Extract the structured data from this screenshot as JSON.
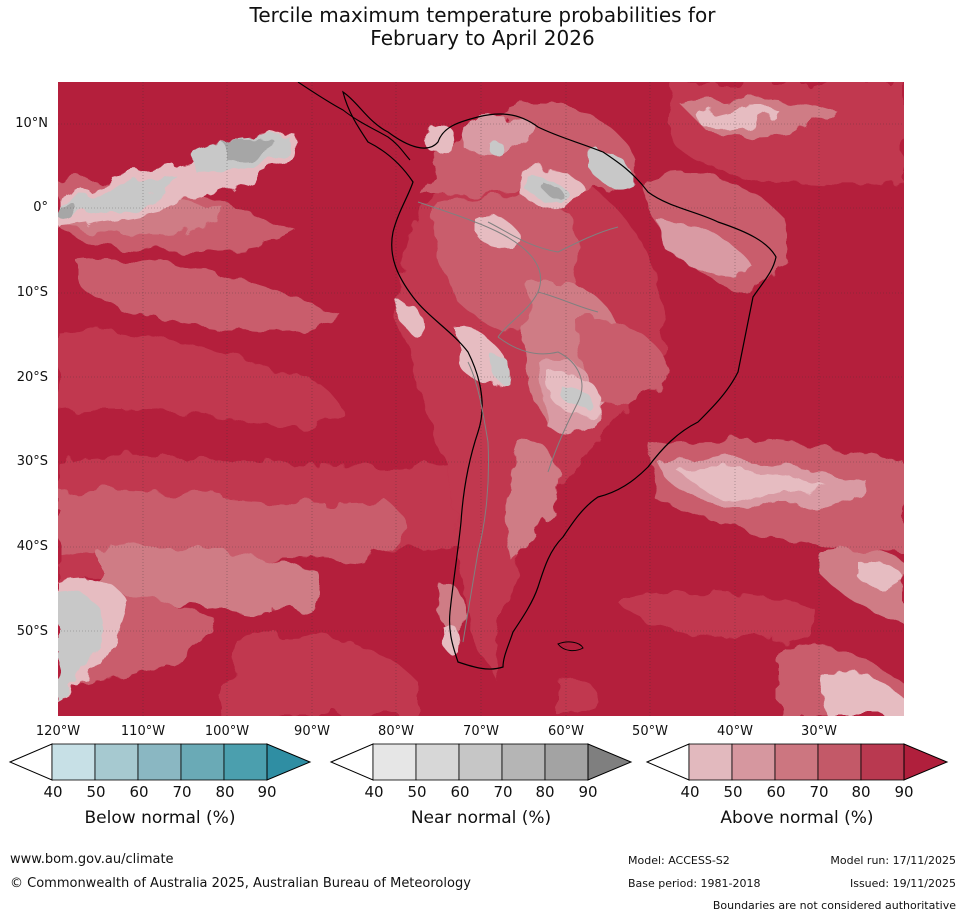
{
  "title": {
    "line1": "Tercile maximum temperature probabilities for",
    "line2": "February to April 2026"
  },
  "map": {
    "latitude_labels": [
      "10°N",
      "0°",
      "10°S",
      "20°S",
      "30°S",
      "40°S",
      "50°S"
    ],
    "longitude_labels": [
      "120°W",
      "110°W",
      "100°W",
      "90°W",
      "80°W",
      "70°W",
      "60°W",
      "50°W",
      "40°W",
      "30°W"
    ],
    "colors": {
      "ocean_dominant": "#b41f3c",
      "above_80": "#c1374f",
      "above_70": "#c95d6c",
      "above_60": "#cf7b85",
      "above_50": "#d99aa3",
      "above_40": "#e6bcc1",
      "near_60": "#c8c8c8",
      "near_80": "#a6a6a6",
      "coastline": "#000000",
      "boundary": "#808080"
    }
  },
  "colorbars": {
    "below": {
      "title": "Below normal (%)",
      "ticks": [
        "40",
        "50",
        "60",
        "70",
        "80",
        "90"
      ],
      "colors": [
        "#ffffff",
        "#c7e0e6",
        "#a6c9d0",
        "#8ab7c2",
        "#6aaab6",
        "#4b9fae",
        "#2f8ea3"
      ]
    },
    "near": {
      "title": "Near normal (%)",
      "ticks": [
        "40",
        "50",
        "60",
        "70",
        "80",
        "90"
      ],
      "colors": [
        "#ffffff",
        "#e6e6e6",
        "#d7d7d7",
        "#c6c6c6",
        "#b5b5b5",
        "#a3a3a3",
        "#7f7f7f"
      ]
    },
    "above": {
      "title": "Above normal (%)",
      "ticks": [
        "40",
        "50",
        "60",
        "70",
        "80",
        "90"
      ],
      "colors": [
        "#ffffff",
        "#e2b9be",
        "#d6979f",
        "#cc7680",
        "#c35968",
        "#b93950",
        "#b01f3c"
      ]
    }
  },
  "footer": {
    "website": "www.bom.gov.au/climate",
    "copyright": "© Commonwealth of Australia 2025, Australian Bureau of Meteorology",
    "model": "Model: ACCESS-S2",
    "base_period": "Base period: 1981-2018",
    "model_run": "Model run: 17/11/2025",
    "issued": "Issued: 19/11/2025",
    "disclaimer": "Boundaries are not considered authoritative"
  }
}
